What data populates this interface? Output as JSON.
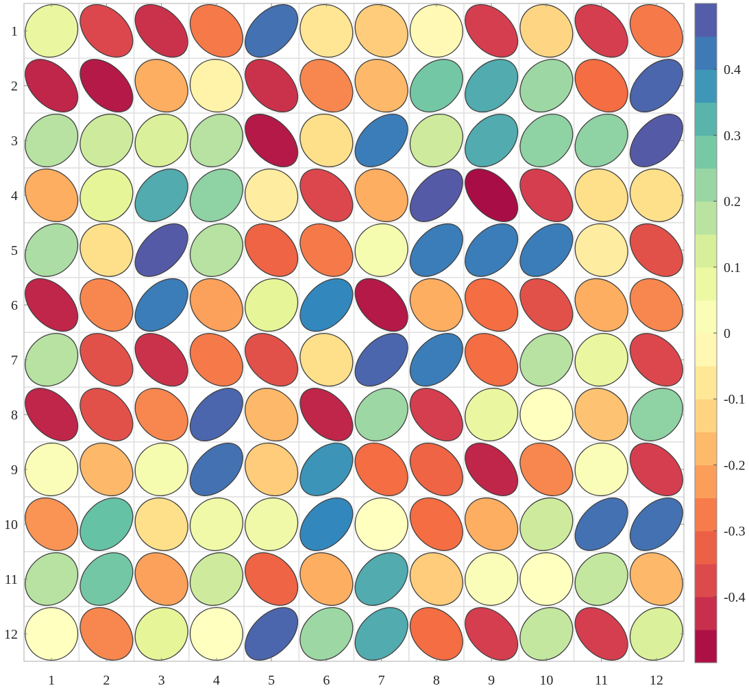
{
  "chart_data": {
    "type": "heatmap",
    "subtype": "correlation-ellipse-matrix",
    "title": "",
    "xlabel": "",
    "ylabel": "",
    "x_categories": [
      "1",
      "2",
      "3",
      "4",
      "5",
      "6",
      "7",
      "8",
      "9",
      "10",
      "11",
      "12"
    ],
    "y_categories": [
      "1",
      "2",
      "3",
      "4",
      "5",
      "6",
      "7",
      "8",
      "9",
      "10",
      "11",
      "12"
    ],
    "values": [
      [
        0.08,
        -0.38,
        -0.42,
        -0.28,
        0.44,
        -0.08,
        -0.14,
        -0.02,
        -0.4,
        -0.12,
        -0.4,
        -0.28
      ],
      [
        -0.44,
        -0.46,
        -0.2,
        -0.04,
        -0.42,
        -0.26,
        -0.18,
        0.28,
        0.34,
        0.22,
        -0.3,
        0.46
      ],
      [
        0.18,
        0.14,
        0.12,
        0.18,
        -0.46,
        -0.1,
        0.42,
        0.14,
        0.34,
        0.24,
        0.24,
        0.48
      ],
      [
        -0.2,
        0.1,
        0.34,
        0.24,
        -0.06,
        -0.38,
        -0.2,
        0.48,
        -0.48,
        -0.4,
        -0.1,
        -0.1
      ],
      [
        0.2,
        -0.1,
        0.48,
        0.18,
        -0.32,
        -0.28,
        0.04,
        0.42,
        0.42,
        0.42,
        -0.06,
        -0.36
      ],
      [
        -0.44,
        -0.26,
        0.42,
        -0.22,
        0.1,
        0.4,
        -0.46,
        -0.2,
        -0.3,
        -0.36,
        -0.2,
        -0.26
      ],
      [
        0.18,
        -0.36,
        -0.42,
        -0.28,
        -0.36,
        -0.1,
        0.46,
        0.42,
        -0.3,
        0.18,
        0.08,
        -0.38
      ],
      [
        -0.44,
        -0.36,
        -0.26,
        0.46,
        -0.18,
        -0.44,
        0.22,
        -0.4,
        0.08,
        0.0,
        -0.16,
        0.24
      ],
      [
        0.02,
        -0.18,
        0.04,
        0.44,
        -0.14,
        0.38,
        -0.3,
        -0.32,
        -0.44,
        -0.26,
        0.02,
        -0.4
      ],
      [
        -0.24,
        0.3,
        -0.1,
        0.06,
        0.06,
        0.4,
        0.0,
        -0.3,
        -0.2,
        0.14,
        0.44,
        0.44
      ],
      [
        0.18,
        0.28,
        -0.22,
        0.14,
        -0.32,
        -0.2,
        0.34,
        -0.14,
        0.02,
        0.0,
        0.16,
        -0.18
      ],
      [
        0.0,
        -0.26,
        0.1,
        0.0,
        0.46,
        0.22,
        0.34,
        -0.3,
        -0.4,
        0.16,
        -0.4,
        0.12
      ]
    ],
    "value_range": [
      -0.5,
      0.5
    ],
    "colormap": "Spectral",
    "colorbar": {
      "ticks": [
        "0.4",
        "0.3",
        "0.2",
        "0.1",
        "0",
        "-0.1",
        "-0.2",
        "-0.3",
        "-0.4"
      ],
      "tick_values": [
        0.4,
        0.3,
        0.2,
        0.1,
        0,
        -0.1,
        -0.2,
        -0.3,
        -0.4
      ],
      "levels": 20
    },
    "grid": true,
    "legend": "colorbar-right",
    "colors": {
      "grid": "#dedede",
      "frame": "#c8c8c8",
      "ellipse_edge": "#404040",
      "spectral_stops": [
        "#9e0142",
        "#d53e4f",
        "#f46d43",
        "#fdae61",
        "#fee08b",
        "#ffffbf",
        "#e6f598",
        "#abdda4",
        "#66c2a5",
        "#3288bd",
        "#5e4fa2"
      ]
    }
  }
}
